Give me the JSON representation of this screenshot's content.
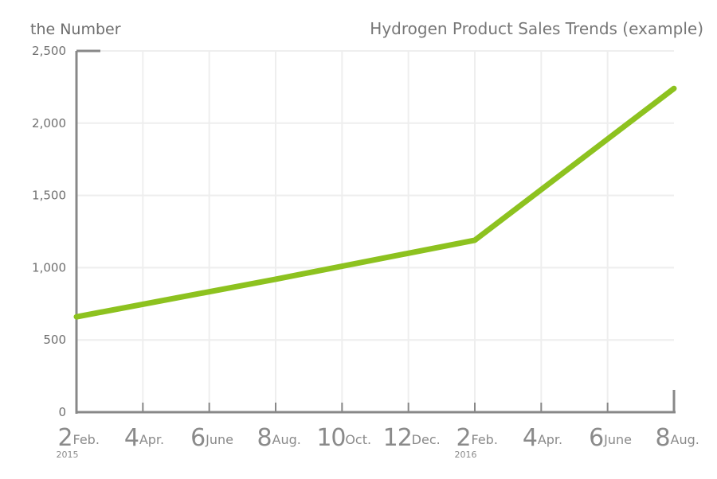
{
  "chart_data": {
    "type": "line",
    "title": "Hydrogen Product Sales Trends (example)",
    "ylabel": "the Number",
    "ylim": [
      0,
      2500
    ],
    "y_ticks": [
      "0",
      "500",
      "1,000",
      "1,500",
      "2,000",
      "2,500"
    ],
    "y_tick_values": [
      0,
      500,
      1000,
      1500,
      2000,
      2500
    ],
    "grid": true,
    "categories": [
      {
        "num": "2",
        "month": "Feb.",
        "year": "2015"
      },
      {
        "num": "4",
        "month": "Apr.",
        "year": ""
      },
      {
        "num": "6",
        "month": "June",
        "year": ""
      },
      {
        "num": "8",
        "month": "Aug.",
        "year": ""
      },
      {
        "num": "10",
        "month": "Oct.",
        "year": ""
      },
      {
        "num": "12",
        "month": "Dec.",
        "year": ""
      },
      {
        "num": "2",
        "month": "Feb.",
        "year": "2016"
      },
      {
        "num": "4",
        "month": "Apr.",
        "year": ""
      },
      {
        "num": "6",
        "month": "June",
        "year": ""
      },
      {
        "num": "8",
        "month": "Aug.",
        "year": ""
      }
    ],
    "series": [
      {
        "color": "#8dc21f",
        "points": [
          {
            "x": "2015-02",
            "y": 660
          },
          {
            "x": "2015-08",
            "y": 920
          },
          {
            "x": "2016-02",
            "y": 1190
          },
          {
            "x": "2016-08",
            "y": 2240
          }
        ]
      }
    ],
    "line_color": "#8dc21f",
    "axis_color": "#888888",
    "grid_color": "#eeeeee"
  }
}
